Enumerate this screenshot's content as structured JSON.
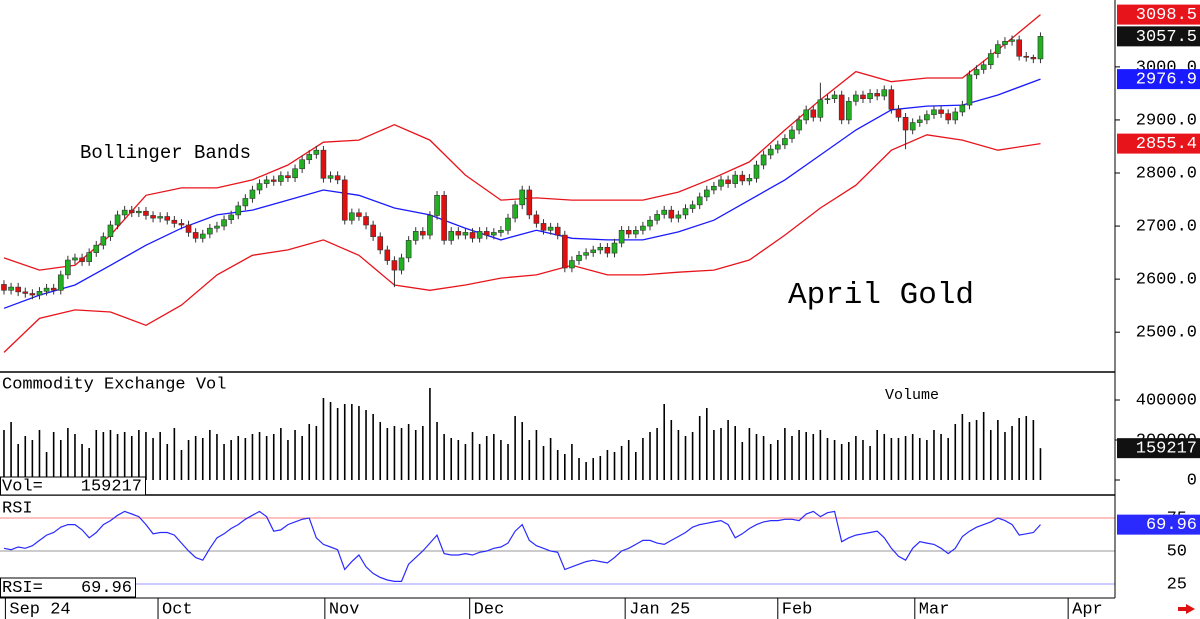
{
  "chart_data": {
    "type": "candlestick",
    "title": "April Gold",
    "annotation": "Bollinger Bands",
    "up_color": "#22b022",
    "down_color": "#e01010",
    "xlim": [
      -0.56,
      156.5
    ],
    "ylim": [
      2425,
      3126
    ],
    "yticks": [
      {
        "value": 2500,
        "label": "2500.0"
      },
      {
        "value": 2600,
        "label": "2600.0"
      },
      {
        "value": 2700,
        "label": "2700.0"
      },
      {
        "value": 2800,
        "label": "2800.0"
      },
      {
        "value": 2900,
        "label": "2900.0"
      },
      {
        "value": 3000,
        "label": "3000.0"
      }
    ],
    "months": {
      "labels": [
        "Sep 24",
        "Oct",
        "Nov",
        "Dec",
        "Jan 25",
        "Feb",
        "Mar",
        "Apr"
      ],
      "x": [
        0.2,
        21.7,
        45.2,
        65.6,
        87.5,
        109,
        128.3,
        149.9
      ]
    },
    "open": [
      2590,
      2579,
      2585,
      2576,
      2573,
      2570,
      2577,
      2583,
      2579,
      2608,
      2636,
      2640,
      2633,
      2650,
      2664,
      2680,
      2702,
      2721,
      2730,
      2725,
      2728,
      2720,
      2715,
      2718,
      2711,
      2705,
      2702,
      2688,
      2677,
      2685,
      2696,
      2700,
      2712,
      2721,
      2738,
      2752,
      2768,
      2780,
      2787,
      2784,
      2795,
      2791,
      2808,
      2825,
      2835,
      2843,
      2790,
      2795,
      2787,
      2711,
      2725,
      2718,
      2702,
      2680,
      2655,
      2635,
      2617,
      2640,
      2673,
      2690,
      2683,
      2720,
      2758,
      2673,
      2690,
      2683,
      2688,
      2677,
      2690,
      2683,
      2688,
      2692,
      2715,
      2740,
      2768,
      2721,
      2705,
      2692,
      2698,
      2683,
      2621,
      2635,
      2645,
      2650,
      2655,
      2660,
      2649,
      2668,
      2692,
      2685,
      2692,
      2700,
      2711,
      2722,
      2730,
      2715,
      2721,
      2733,
      2740,
      2755,
      2768,
      2775,
      2787,
      2780,
      2796,
      2785,
      2790,
      2815,
      2834,
      2845,
      2853,
      2865,
      2881,
      2900,
      2919,
      2905,
      2938,
      2940,
      2947,
      2900,
      2935,
      2947,
      2940,
      2950,
      2945,
      2957,
      2920,
      2905,
      2881,
      2895,
      2900,
      2910,
      2919,
      2912,
      2900,
      2915,
      2928,
      2985,
      2995,
      3004,
      3025,
      3042,
      3048,
      3051,
      3020,
      3018,
      3015
    ],
    "high": [
      2598,
      2593,
      2593,
      2584,
      2581,
      2585,
      2591,
      2591,
      2616,
      2644,
      2648,
      2648,
      2658,
      2672,
      2688,
      2710,
      2729,
      2738,
      2738,
      2736,
      2736,
      2728,
      2726,
      2726,
      2719,
      2713,
      2710,
      2696,
      2693,
      2704,
      2708,
      2720,
      2729,
      2746,
      2760,
      2776,
      2788,
      2795,
      2795,
      2803,
      2803,
      2816,
      2833,
      2843,
      2851,
      2851,
      2803,
      2803,
      2795,
      2733,
      2733,
      2726,
      2710,
      2688,
      2663,
      2643,
      2648,
      2681,
      2698,
      2698,
      2728,
      2766,
      2766,
      2698,
      2698,
      2696,
      2696,
      2698,
      2698,
      2696,
      2700,
      2723,
      2748,
      2776,
      2776,
      2729,
      2713,
      2706,
      2706,
      2691,
      2643,
      2653,
      2658,
      2663,
      2668,
      2668,
      2676,
      2700,
      2700,
      2700,
      2708,
      2719,
      2730,
      2738,
      2738,
      2729,
      2741,
      2748,
      2763,
      2776,
      2783,
      2795,
      2795,
      2804,
      2804,
      2798,
      2823,
      2842,
      2853,
      2861,
      2873,
      2889,
      2908,
      2927,
      2927,
      2970,
      2948,
      2955,
      2955,
      2943,
      2955,
      2955,
      2958,
      2958,
      2965,
      2965,
      2928,
      2913,
      2903,
      2908,
      2918,
      2927,
      2927,
      2920,
      2923,
      2936,
      2993,
      3003,
      3012,
      3033,
      3050,
      3056,
      3059,
      3059,
      3028,
      3023,
      3065
    ],
    "low": [
      2571,
      2571,
      2568,
      2565,
      2562,
      2562,
      2569,
      2571,
      2571,
      2600,
      2628,
      2625,
      2625,
      2642,
      2656,
      2672,
      2694,
      2713,
      2717,
      2717,
      2712,
      2707,
      2707,
      2703,
      2697,
      2694,
      2680,
      2669,
      2669,
      2677,
      2688,
      2692,
      2704,
      2713,
      2730,
      2744,
      2760,
      2772,
      2776,
      2776,
      2783,
      2783,
      2800,
      2817,
      2827,
      2782,
      2782,
      2779,
      2703,
      2703,
      2710,
      2694,
      2672,
      2647,
      2627,
      2585,
      2609,
      2632,
      2665,
      2675,
      2675,
      2712,
      2665,
      2665,
      2675,
      2675,
      2669,
      2669,
      2675,
      2675,
      2680,
      2684,
      2707,
      2732,
      2713,
      2697,
      2684,
      2684,
      2675,
      2613,
      2613,
      2627,
      2637,
      2642,
      2647,
      2641,
      2641,
      2660,
      2677,
      2677,
      2684,
      2692,
      2703,
      2714,
      2707,
      2707,
      2713,
      2725,
      2732,
      2747,
      2760,
      2767,
      2772,
      2772,
      2777,
      2777,
      2782,
      2807,
      2826,
      2837,
      2845,
      2857,
      2873,
      2892,
      2897,
      2897,
      2930,
      2932,
      2892,
      2892,
      2927,
      2932,
      2932,
      2937,
      2937,
      2912,
      2897,
      2845,
      2873,
      2887,
      2892,
      2902,
      2904,
      2892,
      2892,
      2907,
      2920,
      2977,
      2987,
      2996,
      3017,
      3034,
      3040,
      3012,
      3010,
      3007,
      3007
    ],
    "close": [
      2579,
      2585,
      2576,
      2573,
      2570,
      2577,
      2583,
      2579,
      2608,
      2636,
      2640,
      2633,
      2650,
      2664,
      2680,
      2702,
      2721,
      2730,
      2725,
      2728,
      2720,
      2715,
      2718,
      2711,
      2705,
      2702,
      2688,
      2677,
      2685,
      2696,
      2700,
      2712,
      2721,
      2738,
      2752,
      2768,
      2780,
      2787,
      2784,
      2795,
      2791,
      2808,
      2825,
      2835,
      2843,
      2790,
      2795,
      2787,
      2711,
      2725,
      2718,
      2702,
      2680,
      2655,
      2635,
      2617,
      2640,
      2673,
      2690,
      2683,
      2720,
      2758,
      2673,
      2690,
      2683,
      2688,
      2677,
      2690,
      2683,
      2688,
      2692,
      2715,
      2740,
      2768,
      2721,
      2705,
      2692,
      2698,
      2683,
      2621,
      2635,
      2645,
      2650,
      2655,
      2660,
      2649,
      2668,
      2692,
      2685,
      2692,
      2700,
      2711,
      2722,
      2730,
      2715,
      2721,
      2733,
      2740,
      2755,
      2768,
      2775,
      2787,
      2780,
      2796,
      2785,
      2790,
      2815,
      2834,
      2845,
      2853,
      2865,
      2881,
      2900,
      2919,
      2905,
      2938,
      2940,
      2947,
      2900,
      2935,
      2947,
      2940,
      2950,
      2945,
      2957,
      2920,
      2905,
      2881,
      2895,
      2900,
      2910,
      2919,
      2912,
      2900,
      2915,
      2928,
      2985,
      2995,
      3004,
      3025,
      3042,
      3048,
      3051,
      3020,
      3018,
      3015,
      3057.5
    ],
    "last_color": "#111111",
    "bands": {
      "outer_color": "#e8141b",
      "middle_color": "#1a1aff",
      "x": [
        0,
        5,
        10,
        15,
        20,
        25,
        30,
        35,
        40,
        45,
        50,
        55,
        60,
        65,
        70,
        75,
        80,
        85,
        90,
        95,
        100,
        105,
        110,
        115,
        120,
        125,
        130,
        135,
        140,
        146
      ],
      "upper": [
        2640,
        2617,
        2626,
        2683,
        2758,
        2772,
        2772,
        2787,
        2815,
        2858,
        2862,
        2891,
        2862,
        2796,
        2749,
        2753,
        2749,
        2749,
        2749,
        2764,
        2791,
        2821,
        2881,
        2938,
        2991,
        2972,
        2979,
        2979,
        3032,
        3098.5
      ],
      "middle": [
        2545,
        2570,
        2589,
        2626,
        2664,
        2696,
        2721,
        2730,
        2749,
        2768,
        2758,
        2734,
        2721,
        2696,
        2674,
        2692,
        2677,
        2674,
        2674,
        2689,
        2711,
        2749,
        2787,
        2834,
        2881,
        2919,
        2926,
        2928,
        2947,
        2976.9
      ],
      "lower": [
        2462,
        2526,
        2542,
        2538,
        2513,
        2551,
        2608,
        2645,
        2655,
        2674,
        2645,
        2589,
        2579,
        2589,
        2602,
        2608,
        2626,
        2608,
        2608,
        2613,
        2617,
        2636,
        2683,
        2734,
        2777,
        2843,
        2872,
        2862,
        2843,
        2855.4
      ]
    },
    "volume": {
      "title": "Commodity Exchange Vol",
      "label": "Volume",
      "readout": "Vol=",
      "color": "#000000",
      "ylim": [
        -75000,
        540000
      ],
      "yticks": [
        0,
        200000,
        400000
      ],
      "values": [
        250000,
        290000,
        180000,
        220000,
        200000,
        250000,
        140000,
        240000,
        200000,
        260000,
        230000,
        180000,
        160000,
        250000,
        240000,
        250000,
        230000,
        240000,
        220000,
        250000,
        240000,
        210000,
        240000,
        180000,
        260000,
        150000,
        200000,
        220000,
        210000,
        250000,
        230000,
        180000,
        200000,
        220000,
        210000,
        230000,
        240000,
        220000,
        230000,
        260000,
        200000,
        250000,
        220000,
        280000,
        270000,
        410000,
        390000,
        360000,
        380000,
        380000,
        370000,
        350000,
        330000,
        290000,
        260000,
        270000,
        260000,
        280000,
        250000,
        270000,
        460000,
        290000,
        230000,
        210000,
        200000,
        180000,
        240000,
        180000,
        220000,
        230000,
        200000,
        180000,
        320000,
        290000,
        200000,
        250000,
        170000,
        210000,
        150000,
        130000,
        180000,
        110000,
        90000,
        110000,
        120000,
        150000,
        140000,
        170000,
        200000,
        140000,
        210000,
        240000,
        260000,
        380000,
        300000,
        250000,
        220000,
        240000,
        320000,
        360000,
        250000,
        260000,
        300000,
        270000,
        190000,
        260000,
        230000,
        220000,
        180000,
        200000,
        260000,
        220000,
        250000,
        240000,
        230000,
        250000,
        210000,
        200000,
        180000,
        190000,
        220000,
        200000,
        170000,
        250000,
        230000,
        210000,
        210000,
        220000,
        230000,
        210000,
        200000,
        250000,
        230000,
        210000,
        280000,
        330000,
        290000,
        300000,
        340000,
        250000,
        300000,
        240000,
        270000,
        310000,
        320000,
        300000,
        159217
      ]
    },
    "rsi": {
      "title": "RSI",
      "readout": "RSI=",
      "color": "#2a2aff",
      "ylim": [
        14.4,
        92.4
      ],
      "yticks": [
        25,
        50,
        75
      ],
      "tick_line_colors": [
        "#9a9aff",
        "#9a9a9a",
        "#ff8080"
      ],
      "values": [
        52,
        51,
        53,
        52,
        54,
        58,
        62,
        64,
        68,
        70,
        70,
        66,
        60,
        64,
        70,
        73,
        77,
        80,
        78,
        76,
        70,
        63,
        64,
        64,
        62,
        56,
        50,
        45,
        43,
        52,
        60,
        63,
        67,
        70,
        74,
        77,
        80,
        76,
        65,
        66,
        70,
        72,
        74,
        75,
        60,
        55,
        53,
        51,
        36,
        42,
        47,
        38,
        33,
        30,
        28,
        27,
        27,
        40,
        45,
        50,
        56,
        62,
        48,
        47,
        47,
        48,
        47,
        49,
        50,
        52,
        53,
        56,
        65,
        70,
        58,
        54,
        52,
        50,
        49,
        36,
        38,
        40,
        42,
        43,
        42,
        41,
        45,
        50,
        52,
        55,
        58,
        58,
        56,
        55,
        58,
        61,
        64,
        68,
        70,
        71,
        72,
        73,
        70,
        60,
        63,
        67,
        70,
        72,
        73,
        73,
        74,
        74,
        73,
        78,
        80,
        76,
        79,
        80,
        57,
        60,
        62,
        63,
        64,
        65,
        60,
        52,
        46,
        43,
        52,
        57,
        56,
        55,
        52,
        48,
        52,
        61,
        65,
        68,
        70,
        72,
        75,
        73,
        70,
        62,
        63,
        64,
        69.96
      ]
    }
  }
}
